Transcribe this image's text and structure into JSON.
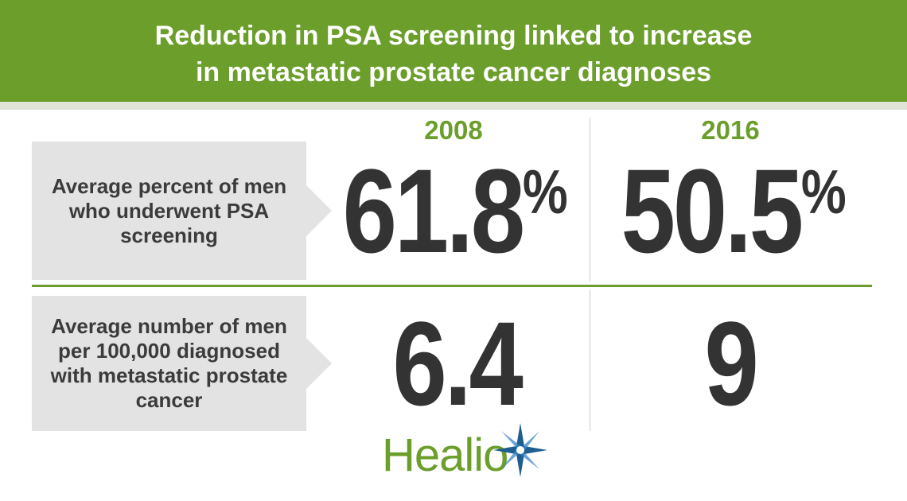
{
  "header": {
    "title_line1": "Reduction in PSA screening linked to increase",
    "title_line2": "in metastatic prostate cancer diagnoses"
  },
  "columns": [
    {
      "year": "2008"
    },
    {
      "year": "2016"
    }
  ],
  "rows": [
    {
      "label": "Average percent of men who underwent PSA screening",
      "values": [
        {
          "value": "61.8",
          "unit": "%"
        },
        {
          "value": "50.5",
          "unit": "%"
        }
      ]
    },
    {
      "label": "Average number of men per 100,000 diagnosed with metastatic prostate cancer",
      "values": [
        {
          "value": "6.4",
          "unit": ""
        },
        {
          "value": "9",
          "unit": ""
        }
      ]
    }
  ],
  "logo": {
    "text": "Healio"
  },
  "colors": {
    "accent": "#6b9e2b",
    "label_bg": "#e3e3e3",
    "number": "#333333",
    "star": "#1f5f8f"
  }
}
